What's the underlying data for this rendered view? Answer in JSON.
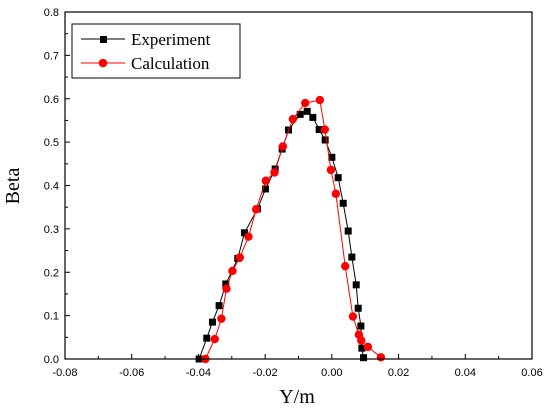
{
  "chart_data": {
    "type": "line",
    "xlabel": "Y/m",
    "ylabel": "Beta",
    "xlim": [
      -0.08,
      0.06
    ],
    "ylim": [
      0.0,
      0.8
    ],
    "xticks": [
      "-0.08",
      "-0.06",
      "-0.04",
      "-0.02",
      "0.00",
      "0.02",
      "0.04",
      "0.06"
    ],
    "yticks": [
      "0.0",
      "0.1",
      "0.2",
      "0.3",
      "0.4",
      "0.5",
      "0.6",
      "0.7",
      "0.8"
    ],
    "grid": false,
    "legend_position": "top-left",
    "series": [
      {
        "name": "Experiment",
        "color": "#000000",
        "marker": "square",
        "points": [
          [
            -0.0398,
            0.0
          ],
          [
            -0.0375,
            0.048
          ],
          [
            -0.0358,
            0.085
          ],
          [
            -0.0338,
            0.123
          ],
          [
            -0.0318,
            0.173
          ],
          [
            -0.0282,
            0.232
          ],
          [
            -0.0262,
            0.291
          ],
          [
            -0.0223,
            0.346
          ],
          [
            -0.0199,
            0.392
          ],
          [
            -0.017,
            0.438
          ],
          [
            -0.0149,
            0.484
          ],
          [
            -0.013,
            0.528
          ],
          [
            -0.0095,
            0.564
          ],
          [
            -0.0074,
            0.571
          ],
          [
            -0.0057,
            0.557
          ],
          [
            -0.0038,
            0.529
          ],
          [
            -0.002,
            0.505
          ],
          [
            0.0,
            0.465
          ],
          [
            0.0019,
            0.418
          ],
          [
            0.0034,
            0.359
          ],
          [
            0.0049,
            0.295
          ],
          [
            0.006,
            0.235
          ],
          [
            0.0073,
            0.171
          ],
          [
            0.0079,
            0.117
          ],
          [
            0.0087,
            0.076
          ],
          [
            0.009,
            0.025
          ],
          [
            0.0095,
            0.003
          ]
        ]
      },
      {
        "name": "Calculation",
        "color": "#ff0000",
        "marker": "circle",
        "points": [
          [
            -0.0379,
            0.0
          ],
          [
            -0.0351,
            0.046
          ],
          [
            -0.0331,
            0.093
          ],
          [
            -0.0316,
            0.162
          ],
          [
            -0.0298,
            0.203
          ],
          [
            -0.0276,
            0.234
          ],
          [
            -0.025,
            0.282
          ],
          [
            -0.0227,
            0.345
          ],
          [
            -0.0198,
            0.411
          ],
          [
            -0.0172,
            0.43
          ],
          [
            -0.0147,
            0.49
          ],
          [
            -0.0117,
            0.553
          ],
          [
            -0.008,
            0.59
          ],
          [
            -0.0036,
            0.597
          ],
          [
            -0.0021,
            0.529
          ],
          [
            -0.0003,
            0.436
          ],
          [
            0.0012,
            0.381
          ],
          [
            0.004,
            0.214
          ],
          [
            0.0063,
            0.098
          ],
          [
            0.0081,
            0.056
          ],
          [
            0.0088,
            0.043
          ],
          [
            0.0108,
            0.028
          ],
          [
            0.0147,
            0.004
          ]
        ]
      }
    ]
  }
}
